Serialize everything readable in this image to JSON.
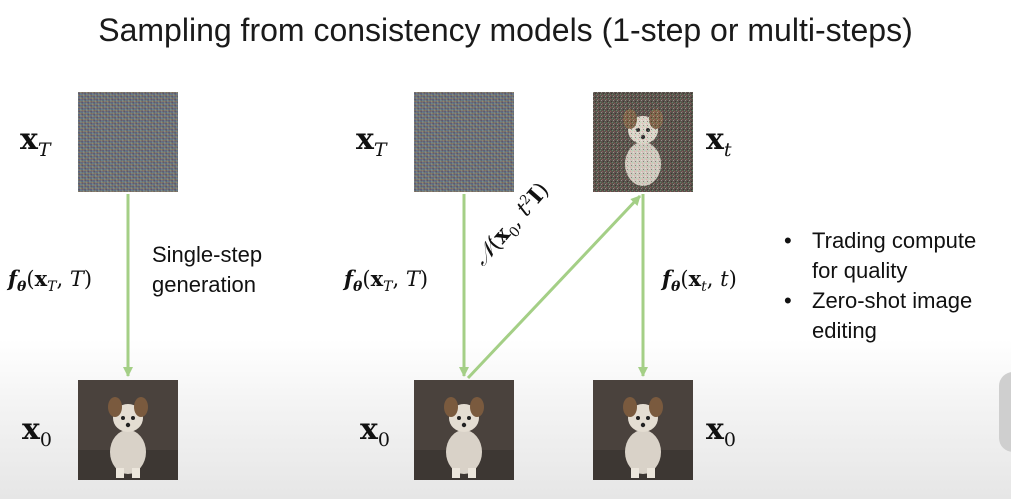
{
  "title": "Sampling from consistency models (1-step or multi-steps)",
  "left_panel": {
    "top_symbol": "xT",
    "top_symbol_sub": "T",
    "bottom_symbol": "x0",
    "function_label": "fθ(xT, T)",
    "caption_line1": "Single-step",
    "caption_line2": "generation"
  },
  "right_panel": {
    "top_left_symbol": "xT",
    "top_right_symbol": "xt",
    "bottom_left_symbol": "x0",
    "bottom_right_symbol": "x0",
    "function_label_left": "fθ(xT, T)",
    "function_label_right": "fθ(xt, t)",
    "noise_label": "N(x0, t²I)"
  },
  "bullets": [
    {
      "line1": "Trading compute",
      "line2": "for quality"
    },
    {
      "line1": "Zero-shot image",
      "line2": "editing"
    }
  ],
  "colors": {
    "arrow": "#a4cf86",
    "text": "#111111"
  }
}
